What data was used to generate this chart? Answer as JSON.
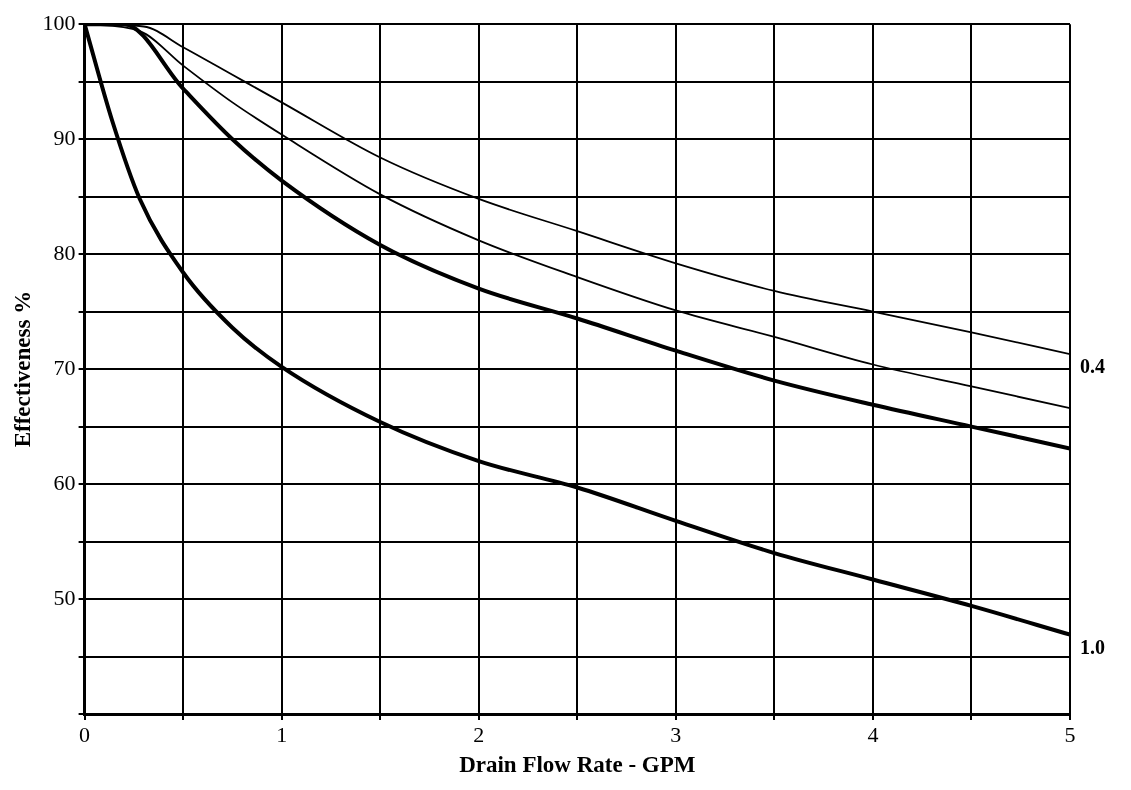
{
  "chart_data": {
    "type": "line",
    "xlabel": "Drain Flow Rate - GPM",
    "ylabel": "Effectiveness %",
    "x": [
      0,
      0.14,
      0.28,
      0.5,
      0.75,
      1,
      1.5,
      2,
      2.5,
      3,
      3.5,
      4,
      4.5,
      5
    ],
    "series": [
      {
        "name": "0.4",
        "color": "#000000",
        "x": [
          0,
          0.3,
          0.5,
          0.75,
          1,
          1.5,
          2,
          2.5,
          3,
          3.5,
          4,
          4.5,
          5
        ],
        "values": [
          100,
          99.8,
          98,
          95.6,
          93.2,
          88.4,
          84.8,
          82,
          79.2,
          76.8,
          75,
          73.2,
          71.3
        ]
      },
      {
        "color": "#000000",
        "x": [
          0,
          0.28,
          0.5,
          0.75,
          1,
          1.5,
          2,
          2.5,
          3,
          3.5,
          4,
          4.5,
          5
        ],
        "values": [
          100,
          99.4,
          96.4,
          93.2,
          90.4,
          85.2,
          81.2,
          78,
          75.1,
          72.8,
          70.4,
          68.5,
          66.6
        ]
      },
      {
        "color": "#000000",
        "x": [
          0,
          0.2,
          0.5,
          0.75,
          1,
          1.5,
          2,
          2.5,
          3,
          3.5,
          4,
          4.5,
          5
        ],
        "values": [
          100,
          100,
          94.4,
          90,
          86.4,
          80.8,
          77,
          74.4,
          71.6,
          69,
          66.9,
          65,
          63.1
        ]
      },
      {
        "name": "1.0",
        "color": "#000000",
        "values": [
          100,
          91.6,
          84.8,
          78.4,
          73.6,
          70.2,
          65.4,
          62,
          59.7,
          56.8,
          54,
          51.7,
          49.4,
          46.9
        ]
      }
    ],
    "xlim": [
      0,
      5
    ],
    "ylim": [
      40,
      100
    ],
    "xticks": [
      0,
      {
        "value": 0.5,
        "label": null
      },
      1,
      {
        "value": 1.5,
        "label": null
      },
      2,
      {
        "value": 2.5,
        "label": null
      },
      3,
      {
        "value": 3.5,
        "label": null
      },
      4,
      {
        "value": 4.5,
        "label": null
      },
      5
    ],
    "yticks": [
      {
        "value": 40,
        "label": null
      },
      {
        "value": 45,
        "label": null
      },
      50,
      {
        "value": 55,
        "label": null
      },
      60,
      {
        "value": 65,
        "label": null
      },
      70,
      {
        "value": 75,
        "label": null
      },
      80,
      {
        "value": 85,
        "label": null
      },
      90,
      {
        "value": 95,
        "label": null
      },
      100
    ],
    "grid": true,
    "legend": false,
    "marker": "none",
    "line_style": "solid"
  }
}
